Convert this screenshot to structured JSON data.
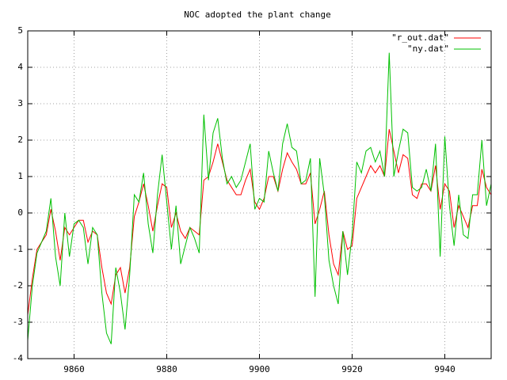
{
  "chart_data": {
    "type": "line",
    "title": "NOC adopted the plant change",
    "x": [
      9850,
      9851,
      9852,
      9853,
      9854,
      9855,
      9856,
      9857,
      9858,
      9859,
      9860,
      9861,
      9862,
      9863,
      9864,
      9865,
      9866,
      9867,
      9868,
      9869,
      9870,
      9871,
      9872,
      9873,
      9874,
      9875,
      9876,
      9877,
      9878,
      9879,
      9880,
      9881,
      9882,
      9883,
      9884,
      9885,
      9886,
      9887,
      9888,
      9889,
      9890,
      9891,
      9892,
      9893,
      9894,
      9895,
      9896,
      9897,
      9898,
      9899,
      9900,
      9901,
      9902,
      9903,
      9904,
      9905,
      9906,
      9907,
      9908,
      9909,
      9910,
      9911,
      9912,
      9913,
      9914,
      9915,
      9916,
      9917,
      9918,
      9919,
      9920,
      9921,
      9922,
      9923,
      9924,
      9925,
      9926,
      9927,
      9928,
      9929,
      9930,
      9931,
      9932,
      9933,
      9934,
      9935,
      9936,
      9937,
      9938,
      9939,
      9940,
      9941,
      9942,
      9943,
      9944,
      9945,
      9946,
      9947,
      9948,
      9949,
      9950
    ],
    "series": [
      {
        "name": "\"r_out.dat\"",
        "color": "#ff0000",
        "values": [
          -2.8,
          -1.8,
          -1.0,
          -0.8,
          -0.6,
          0.1,
          -0.5,
          -1.3,
          -0.4,
          -0.6,
          -0.4,
          -0.2,
          -0.2,
          -0.8,
          -0.5,
          -0.6,
          -1.5,
          -2.2,
          -2.5,
          -1.7,
          -1.5,
          -2.2,
          -1.5,
          -0.1,
          0.3,
          0.8,
          0.2,
          -0.5,
          0.2,
          0.8,
          0.7,
          -0.4,
          0.0,
          -0.5,
          -0.7,
          -0.4,
          -0.5,
          -0.6,
          0.9,
          1.0,
          1.4,
          1.9,
          1.4,
          0.9,
          0.7,
          0.5,
          0.5,
          0.9,
          1.2,
          0.3,
          0.1,
          0.4,
          1.0,
          1.0,
          0.6,
          1.2,
          1.65,
          1.4,
          1.2,
          0.8,
          0.8,
          1.1,
          -0.3,
          0.1,
          0.6,
          -0.6,
          -1.4,
          -1.7,
          -0.5,
          -1.0,
          -0.9,
          0.4,
          0.7,
          1.0,
          1.3,
          1.1,
          1.3,
          1.0,
          2.3,
          1.7,
          1.1,
          1.6,
          1.5,
          0.5,
          0.4,
          0.8,
          0.8,
          0.6,
          1.3,
          0.1,
          0.8,
          0.6,
          -0.4,
          0.2,
          -0.1,
          -0.4,
          0.2,
          0.2,
          1.2,
          0.7,
          0.5
        ]
      },
      {
        "name": "\"ny.dat\"",
        "color": "#00c000",
        "values": [
          -3.5,
          -2.0,
          -1.1,
          -0.8,
          -0.5,
          0.4,
          -1.2,
          -2.0,
          0.0,
          -1.2,
          -0.3,
          -0.2,
          -0.4,
          -1.4,
          -0.4,
          -0.6,
          -2.2,
          -3.3,
          -3.6,
          -1.5,
          -2.2,
          -3.2,
          -1.7,
          0.5,
          0.3,
          1.1,
          -0.3,
          -1.1,
          0.5,
          1.6,
          0.3,
          -1.0,
          0.2,
          -1.4,
          -0.9,
          -0.4,
          -0.7,
          -1.1,
          2.7,
          0.9,
          2.2,
          2.6,
          1.5,
          0.8,
          1.0,
          0.7,
          0.9,
          1.4,
          1.9,
          0.1,
          0.4,
          0.3,
          1.7,
          1.1,
          0.6,
          1.9,
          2.45,
          1.8,
          1.7,
          0.8,
          0.9,
          1.5,
          -2.3,
          1.5,
          0.5,
          -1.3,
          -2.0,
          -2.5,
          -0.5,
          -1.7,
          -0.6,
          1.4,
          1.1,
          1.7,
          1.8,
          1.4,
          1.7,
          1.0,
          4.4,
          1.0,
          1.7,
          2.3,
          2.2,
          0.7,
          0.6,
          0.7,
          1.2,
          0.6,
          1.9,
          -1.2,
          2.1,
          0.2,
          -0.9,
          0.5,
          -0.6,
          -0.7,
          0.5,
          0.5,
          2.0,
          0.2,
          0.8
        ]
      }
    ],
    "xlim": [
      9850,
      9950
    ],
    "xticks": [
      9860,
      9880,
      9900,
      9920,
      9940
    ],
    "ylim": [
      -4,
      5
    ],
    "yticks": [
      -4,
      -3,
      -2,
      -1,
      0,
      1,
      2,
      3,
      4,
      5
    ],
    "grid": true,
    "legend": "top-right"
  }
}
